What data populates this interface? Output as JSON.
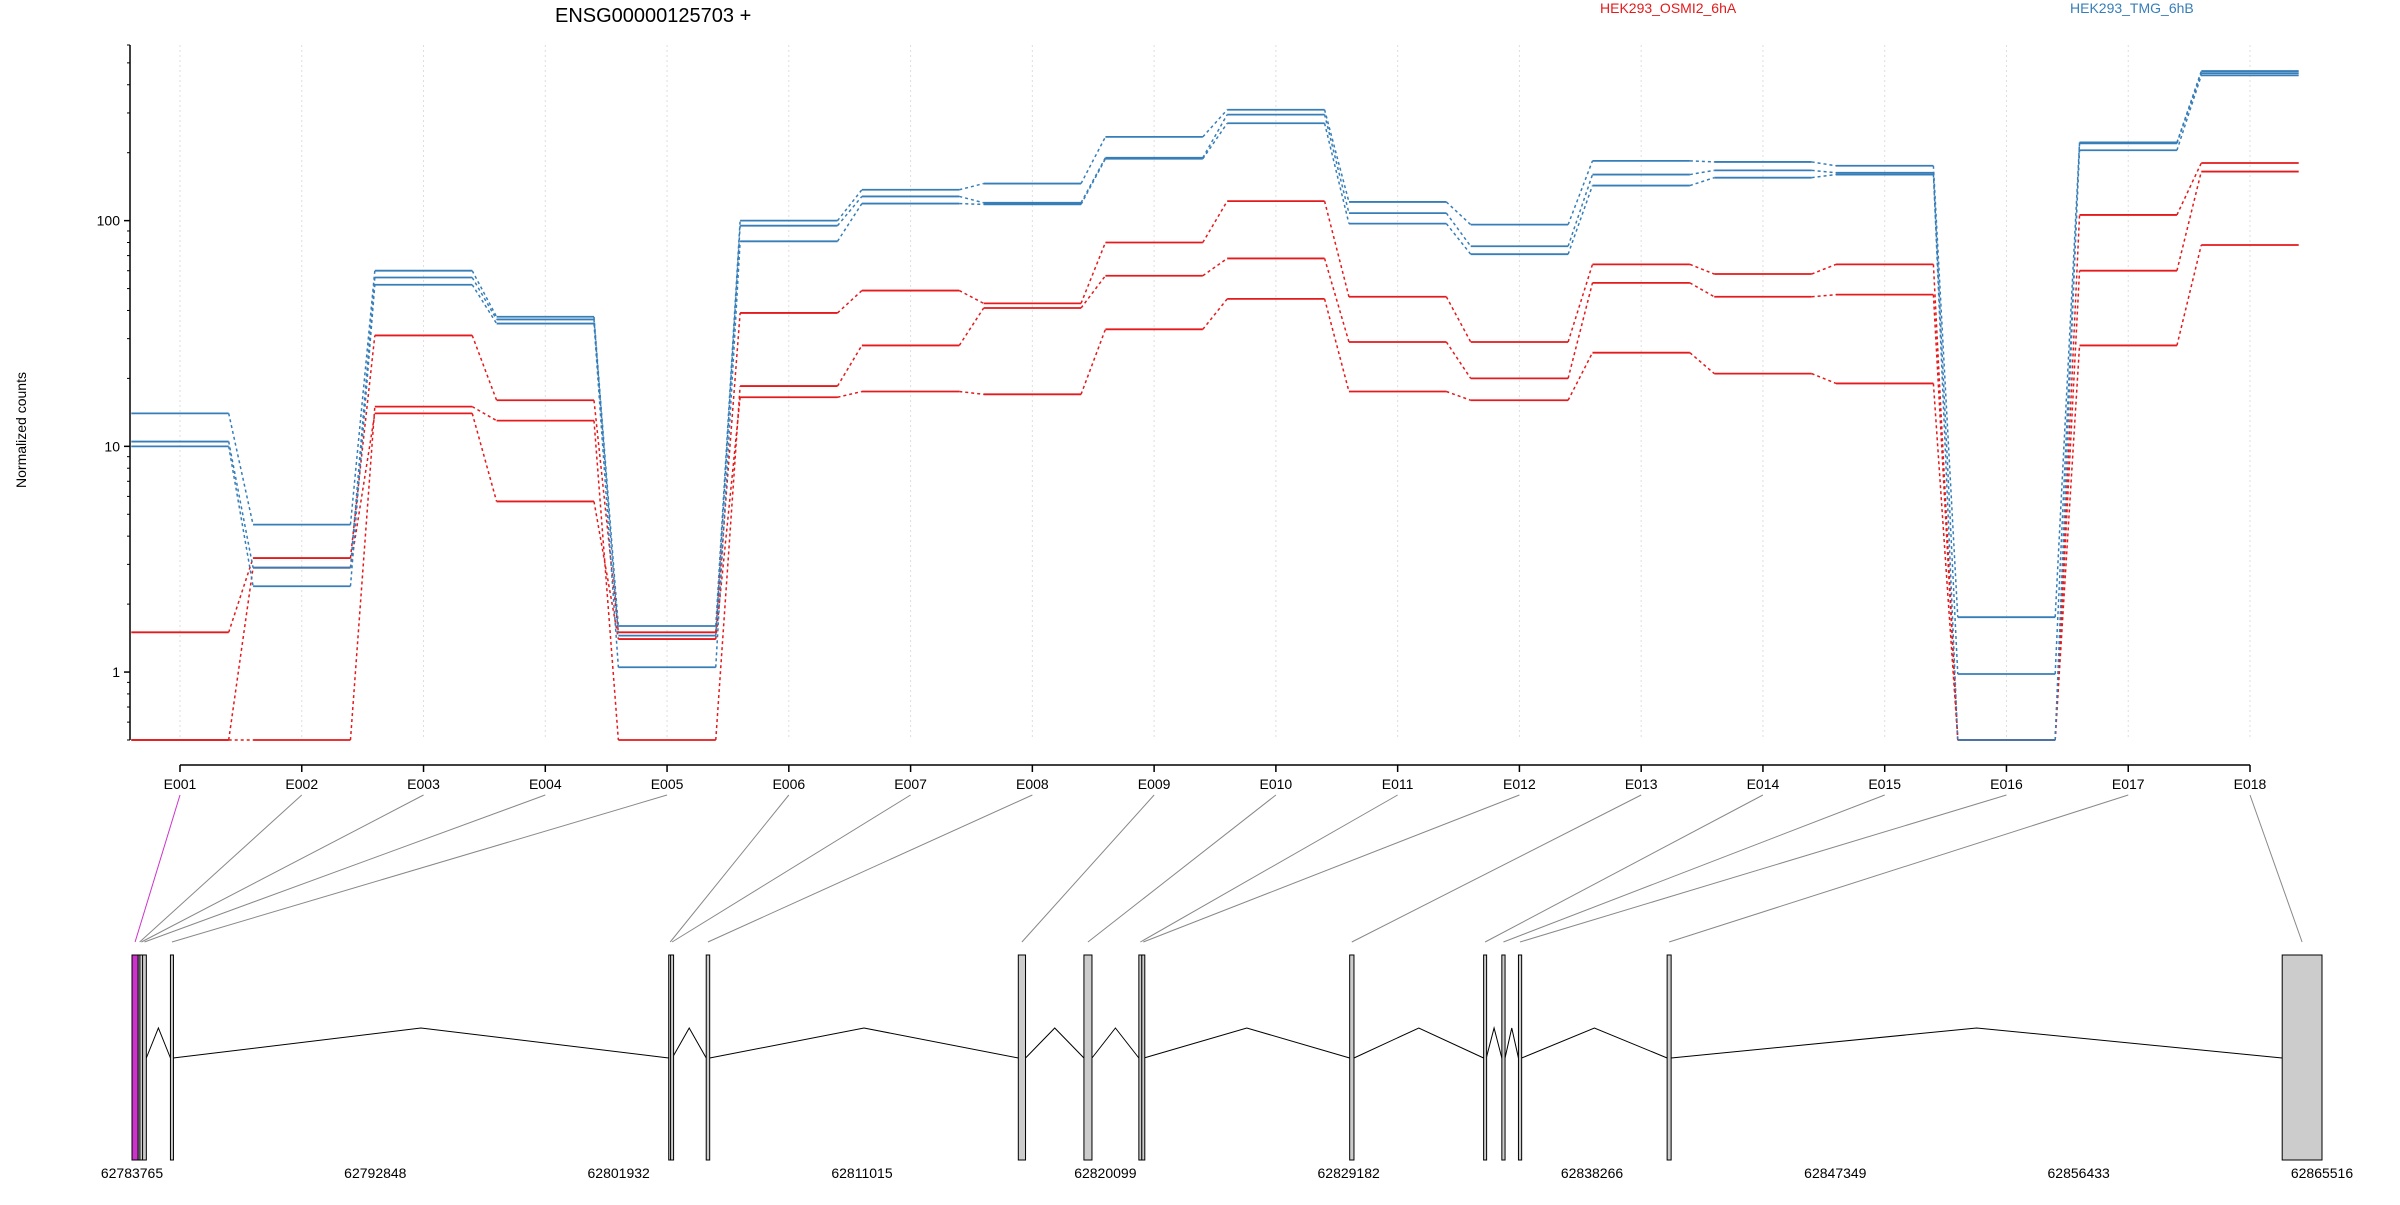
{
  "chart_data": {
    "type": "line",
    "title": "ENSG00000125703 +",
    "ylabel": "Normalized counts",
    "xlabel": "",
    "y_scale": "log",
    "ylim": [
      0.5,
      600
    ],
    "y_ticks": [
      1,
      10,
      100
    ],
    "y_tick_labels": [
      "1",
      "10",
      "100"
    ],
    "grid": "vertical dotted",
    "legend_position": "top",
    "categories": [
      "E001",
      "E002",
      "E003",
      "E004",
      "E005",
      "E006",
      "E007",
      "E008",
      "E009",
      "E010",
      "E011",
      "E012",
      "E013",
      "E014",
      "E015",
      "E016",
      "E017",
      "E018"
    ],
    "groups": [
      {
        "name": "HEK293_OSMI2_6hA",
        "color": "#e41a1c"
      },
      {
        "name": "HEK293_TMG_6hB",
        "color": "#377eb8"
      }
    ],
    "series": [
      {
        "group": "HEK293_OSMI2_6hA",
        "values": [
          1.5,
          3.2,
          31,
          16,
          1.5,
          39,
          49,
          43,
          80,
          122,
          46,
          29,
          64,
          58,
          64,
          0.5,
          106,
          180
        ]
      },
      {
        "group": "HEK293_OSMI2_6hA",
        "values": [
          0.5,
          0.5,
          15,
          13,
          0.5,
          18.5,
          28,
          41,
          57,
          68,
          29,
          20,
          53,
          46,
          47,
          0.5,
          60,
          165
        ]
      },
      {
        "group": "HEK293_OSMI2_6hA",
        "values": [
          0.5,
          2.9,
          14,
          5.7,
          1.4,
          16.5,
          17.5,
          17,
          33,
          45,
          17.5,
          16,
          26,
          21,
          19,
          0.5,
          28,
          78
        ]
      },
      {
        "group": "HEK293_TMG_6hB",
        "values": [
          14,
          4.5,
          60,
          37.5,
          1.6,
          100,
          137,
          146,
          235,
          310,
          121,
          96,
          184,
          182,
          175,
          1.75,
          222,
          460
        ]
      },
      {
        "group": "HEK293_TMG_6hB",
        "values": [
          10.5,
          2.9,
          56,
          36.5,
          1.45,
          95,
          128,
          120,
          190,
          295,
          108,
          77,
          160,
          167,
          163,
          0.5,
          220,
          450
        ]
      },
      {
        "group": "HEK293_TMG_6hB",
        "values": [
          10,
          2.4,
          52,
          35,
          1.05,
          81,
          119,
          118,
          188,
          270,
          97,
          71,
          143,
          155,
          160,
          0.98,
          205,
          440
        ]
      }
    ],
    "gene_model": {
      "coordinates": [
        "62783765",
        "62792848",
        "62801932",
        "62811015",
        "62820099",
        "62829182",
        "62838266",
        "62847349",
        "62856433",
        "62865516"
      ],
      "coord_min": 62783765,
      "coord_max": 62865516,
      "highlight_color": "#cc33cc",
      "exon_fill": "#cccccc",
      "exons": [
        {
          "id": "E001",
          "start": 62783765,
          "end": 62783995,
          "highlight": true
        },
        {
          "id": "E002",
          "start": 62783995,
          "end": 62784060
        },
        {
          "id": "E003",
          "start": 62784060,
          "end": 62784120
        },
        {
          "id": "E004",
          "start": 62784160,
          "end": 62784300
        },
        {
          "id": "E005",
          "start": 62785200,
          "end": 62785300
        },
        {
          "id": "E006",
          "start": 62803800,
          "end": 62803870
        },
        {
          "id": "E007",
          "start": 62803870,
          "end": 62803930
        },
        {
          "id": "E008",
          "start": 62805200,
          "end": 62805330
        },
        {
          "id": "E009",
          "start": 62816850,
          "end": 62817120
        },
        {
          "id": "E010",
          "start": 62819300,
          "end": 62819600
        },
        {
          "id": "E011",
          "start": 62821350,
          "end": 62821460
        },
        {
          "id": "E012",
          "start": 62821460,
          "end": 62821540
        },
        {
          "id": "E013",
          "start": 62829220,
          "end": 62829380
        },
        {
          "id": "E014",
          "start": 62834220,
          "end": 62834320
        },
        {
          "id": "E015",
          "start": 62834900,
          "end": 62835020
        },
        {
          "id": "E016",
          "start": 62835520,
          "end": 62835640
        },
        {
          "id": "E017",
          "start": 62841070,
          "end": 62841220
        },
        {
          "id": "E018",
          "start": 62864030,
          "end": 62865516
        }
      ]
    }
  }
}
